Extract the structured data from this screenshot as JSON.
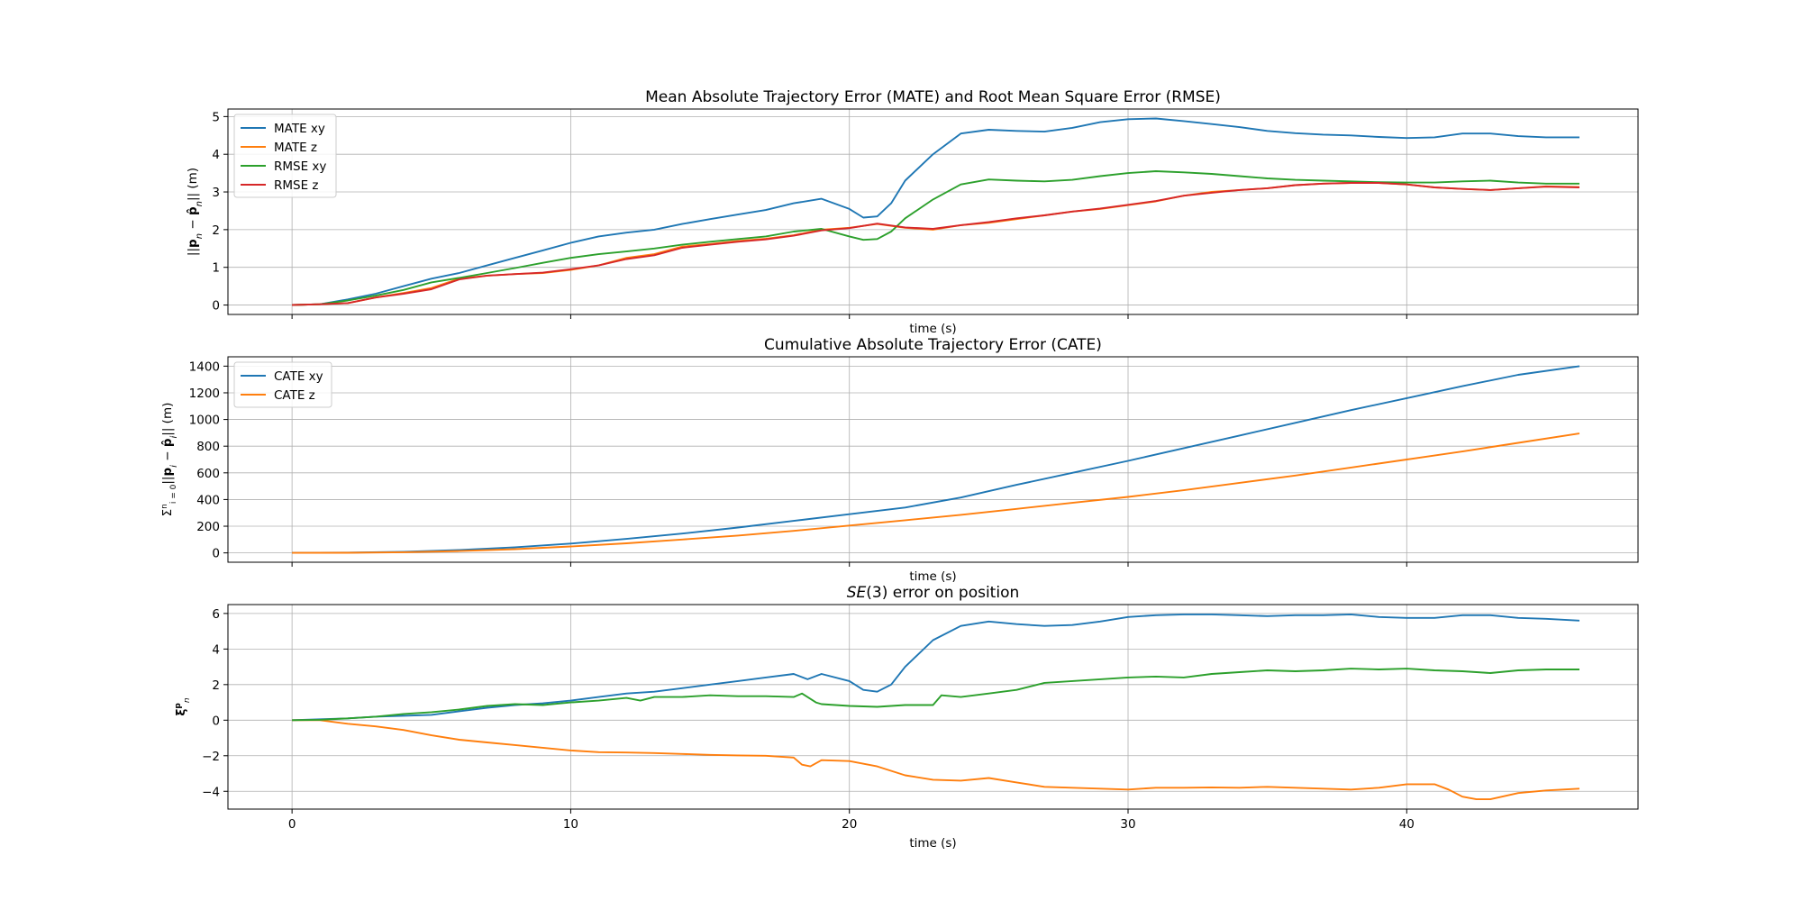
{
  "figure": {
    "background": "#ffffff",
    "grid": true,
    "colors": {
      "blue": "#1f77b4",
      "orange": "#ff7f0e",
      "green": "#2ca02c",
      "red": "#d62728"
    }
  },
  "chart_data": [
    {
      "type": "line",
      "title": "Mean Absolute Trajectory Error (MATE) and Root Mean Square Error (RMSE)",
      "xlabel": "time (s)",
      "ylabel": "||p_n − p̂_n|| (m)",
      "xlim": [
        -2.3,
        48.3
      ],
      "ylim": [
        -0.25,
        5.2
      ],
      "xticks": [
        0,
        10,
        20,
        30,
        40
      ],
      "yticks": [
        0,
        1,
        2,
        3,
        4,
        5
      ],
      "show_xtick_labels": false,
      "legend": "top-left",
      "series": [
        {
          "name": "MATE xy",
          "color": "#1f77b4",
          "x": [
            0,
            1,
            2,
            3,
            4,
            5,
            6,
            7,
            8,
            9,
            10,
            11,
            12,
            13,
            14,
            15,
            16,
            17,
            18,
            19,
            20,
            20.5,
            21,
            21.5,
            22,
            23,
            24,
            25,
            26,
            27,
            28,
            29,
            30,
            31,
            32,
            33,
            34,
            35,
            36,
            37,
            38,
            39,
            40,
            41,
            42,
            43,
            44,
            45,
            46.2
          ],
          "y": [
            0,
            0.02,
            0.15,
            0.3,
            0.5,
            0.7,
            0.85,
            1.05,
            1.25,
            1.45,
            1.65,
            1.82,
            1.92,
            2.0,
            2.15,
            2.28,
            2.4,
            2.52,
            2.7,
            2.82,
            2.55,
            2.32,
            2.35,
            2.7,
            3.3,
            4.0,
            4.55,
            4.65,
            4.62,
            4.6,
            4.7,
            4.85,
            4.93,
            4.95,
            4.88,
            4.8,
            4.72,
            4.62,
            4.56,
            4.52,
            4.5,
            4.46,
            4.43,
            4.45,
            4.55,
            4.55,
            4.48,
            4.45,
            4.45
          ]
        },
        {
          "name": "MATE z",
          "color": "#ff7f0e",
          "x": [
            0,
            1,
            2,
            3,
            4,
            5,
            6,
            7,
            8,
            9,
            10,
            11,
            12,
            13,
            14,
            15,
            16,
            17,
            18,
            19,
            20,
            21,
            22,
            23,
            24,
            25,
            26,
            27,
            28,
            29,
            30,
            31,
            32,
            33,
            34,
            35,
            36,
            37,
            38,
            39,
            40,
            41,
            42,
            43,
            44,
            45,
            46.2
          ],
          "y": [
            0,
            0.02,
            0.05,
            0.2,
            0.32,
            0.45,
            0.7,
            0.78,
            0.82,
            0.85,
            0.93,
            1.05,
            1.25,
            1.35,
            1.55,
            1.62,
            1.7,
            1.76,
            1.85,
            2.0,
            2.05,
            2.15,
            2.05,
            2.0,
            2.12,
            2.18,
            2.28,
            2.38,
            2.48,
            2.55,
            2.65,
            2.75,
            2.9,
            3.0,
            3.05,
            3.1,
            3.18,
            3.22,
            3.24,
            3.24,
            3.2,
            3.12,
            3.08,
            3.05,
            3.1,
            3.15,
            3.13
          ]
        },
        {
          "name": "RMSE xy",
          "color": "#2ca02c",
          "x": [
            0,
            1,
            2,
            3,
            4,
            5,
            6,
            7,
            8,
            9,
            10,
            11,
            12,
            13,
            14,
            15,
            16,
            17,
            18,
            19,
            20,
            20.5,
            21,
            21.5,
            22,
            23,
            24,
            25,
            26,
            27,
            28,
            29,
            30,
            31,
            32,
            33,
            34,
            35,
            36,
            37,
            38,
            39,
            40,
            41,
            42,
            43,
            44,
            45,
            46.2
          ],
          "y": [
            0,
            0.02,
            0.12,
            0.25,
            0.4,
            0.6,
            0.72,
            0.85,
            0.98,
            1.12,
            1.25,
            1.35,
            1.42,
            1.5,
            1.6,
            1.68,
            1.75,
            1.82,
            1.95,
            2.02,
            1.82,
            1.73,
            1.75,
            1.95,
            2.3,
            2.8,
            3.2,
            3.33,
            3.3,
            3.28,
            3.32,
            3.42,
            3.5,
            3.55,
            3.52,
            3.48,
            3.42,
            3.36,
            3.32,
            3.3,
            3.28,
            3.26,
            3.25,
            3.25,
            3.28,
            3.3,
            3.25,
            3.22,
            3.22
          ]
        },
        {
          "name": "RMSE z",
          "color": "#d62728",
          "x": [
            0,
            1,
            2,
            3,
            4,
            5,
            6,
            7,
            8,
            9,
            10,
            11,
            12,
            13,
            14,
            15,
            16,
            17,
            18,
            19,
            20,
            21,
            22,
            23,
            24,
            25,
            26,
            27,
            28,
            29,
            30,
            31,
            32,
            33,
            34,
            35,
            36,
            37,
            38,
            39,
            40,
            41,
            42,
            43,
            44,
            45,
            46.2
          ],
          "y": [
            0,
            0.02,
            0.05,
            0.2,
            0.3,
            0.42,
            0.68,
            0.78,
            0.82,
            0.86,
            0.95,
            1.05,
            1.22,
            1.32,
            1.52,
            1.6,
            1.68,
            1.74,
            1.84,
            1.98,
            2.04,
            2.16,
            2.06,
            2.02,
            2.12,
            2.2,
            2.3,
            2.38,
            2.48,
            2.56,
            2.66,
            2.76,
            2.9,
            2.98,
            3.05,
            3.1,
            3.18,
            3.22,
            3.24,
            3.24,
            3.2,
            3.12,
            3.08,
            3.05,
            3.1,
            3.14,
            3.12
          ]
        }
      ]
    },
    {
      "type": "line",
      "title": "Cumulative Absolute Trajectory Error (CATE)",
      "xlabel": "time (s)",
      "ylabel": "Σ_{i=0}^{n} ||p_i − p̂_i|| (m)",
      "xlim": [
        -2.3,
        48.3
      ],
      "ylim": [
        -70,
        1470
      ],
      "xticks": [
        0,
        10,
        20,
        30,
        40
      ],
      "yticks": [
        0,
        200,
        400,
        600,
        800,
        1000,
        1200,
        1400
      ],
      "show_xtick_labels": false,
      "legend": "top-left",
      "series": [
        {
          "name": "CATE xy",
          "color": "#1f77b4",
          "x": [
            0,
            2,
            4,
            6,
            8,
            10,
            12,
            14,
            16,
            18,
            20,
            22,
            24,
            26,
            28,
            30,
            32,
            34,
            36,
            38,
            40,
            42,
            44,
            46.2
          ],
          "y": [
            0,
            2,
            8,
            22,
            42,
            70,
            105,
            145,
            190,
            240,
            290,
            340,
            415,
            510,
            600,
            690,
            785,
            880,
            975,
            1070,
            1160,
            1250,
            1335,
            1400
          ]
        },
        {
          "name": "CATE z",
          "color": "#ff7f0e",
          "x": [
            0,
            2,
            4,
            6,
            8,
            10,
            12,
            14,
            16,
            18,
            20,
            22,
            24,
            26,
            28,
            30,
            32,
            34,
            36,
            38,
            40,
            42,
            44,
            46.2
          ],
          "y": [
            0,
            1,
            5,
            14,
            28,
            48,
            72,
            100,
            130,
            165,
            205,
            245,
            285,
            330,
            375,
            420,
            470,
            525,
            580,
            640,
            700,
            760,
            825,
            895
          ]
        }
      ]
    },
    {
      "type": "line",
      "title": "SE(3) error on position",
      "xlabel": "time (s)",
      "ylabel": "ξ_n^p",
      "xlim": [
        -2.3,
        48.3
      ],
      "ylim": [
        -5.0,
        6.5
      ],
      "xticks": [
        0,
        10,
        20,
        30,
        40
      ],
      "yticks": [
        -4,
        -2,
        0,
        2,
        4,
        6
      ],
      "show_xtick_labels": true,
      "series": [
        {
          "color": "#1f77b4",
          "x": [
            0,
            1,
            2,
            3,
            4,
            5,
            6,
            7,
            8,
            9,
            10,
            11,
            12,
            13,
            14,
            15,
            16,
            17,
            18,
            18.5,
            19,
            20,
            20.5,
            21,
            21.5,
            22,
            23,
            24,
            25,
            26,
            27,
            28,
            29,
            30,
            31,
            32,
            33,
            34,
            35,
            36,
            37,
            38,
            39,
            40,
            41,
            42,
            43,
            44,
            45,
            46.2
          ],
          "y": [
            0,
            0.05,
            0.1,
            0.2,
            0.25,
            0.3,
            0.5,
            0.7,
            0.85,
            0.95,
            1.1,
            1.3,
            1.5,
            1.6,
            1.8,
            2.0,
            2.2,
            2.4,
            2.6,
            2.3,
            2.6,
            2.2,
            1.7,
            1.6,
            2.0,
            3.0,
            4.5,
            5.3,
            5.55,
            5.4,
            5.3,
            5.35,
            5.55,
            5.8,
            5.9,
            5.95,
            5.95,
            5.9,
            5.85,
            5.9,
            5.9,
            5.95,
            5.8,
            5.75,
            5.75,
            5.9,
            5.9,
            5.75,
            5.7,
            5.6
          ]
        },
        {
          "color": "#ff7f0e",
          "x": [
            0,
            1,
            2,
            3,
            4,
            5,
            6,
            7,
            8,
            9,
            10,
            11,
            12,
            13,
            14,
            15,
            16,
            17,
            18,
            18.3,
            18.6,
            19,
            20,
            21,
            22,
            23,
            24,
            25,
            26,
            27,
            28,
            29,
            30,
            31,
            32,
            33,
            34,
            35,
            36,
            37,
            38,
            39,
            40,
            41,
            41.5,
            42,
            42.5,
            43,
            44,
            45,
            46.2
          ],
          "y": [
            0,
            0,
            -0.2,
            -0.35,
            -0.55,
            -0.85,
            -1.1,
            -1.25,
            -1.4,
            -1.55,
            -1.7,
            -1.8,
            -1.82,
            -1.85,
            -1.9,
            -1.95,
            -1.98,
            -2.0,
            -2.1,
            -2.5,
            -2.6,
            -2.25,
            -2.3,
            -2.6,
            -3.1,
            -3.35,
            -3.4,
            -3.25,
            -3.5,
            -3.75,
            -3.8,
            -3.85,
            -3.9,
            -3.8,
            -3.8,
            -3.78,
            -3.8,
            -3.75,
            -3.8,
            -3.85,
            -3.9,
            -3.8,
            -3.6,
            -3.6,
            -3.9,
            -4.3,
            -4.45,
            -4.45,
            -4.1,
            -3.95,
            -3.85
          ]
        },
        {
          "color": "#2ca02c",
          "x": [
            0,
            1,
            2,
            3,
            4,
            5,
            6,
            7,
            8,
            9,
            10,
            11,
            12,
            12.5,
            13,
            14,
            15,
            16,
            17,
            18,
            18.3,
            18.8,
            19,
            20,
            21,
            22,
            23,
            23.3,
            24,
            25,
            26,
            27,
            28,
            29,
            30,
            31,
            32,
            33,
            34,
            35,
            36,
            37,
            38,
            39,
            40,
            41,
            42,
            43,
            44,
            45,
            46.2
          ],
          "y": [
            0,
            0.02,
            0.1,
            0.2,
            0.35,
            0.45,
            0.6,
            0.8,
            0.9,
            0.85,
            1.0,
            1.1,
            1.25,
            1.1,
            1.3,
            1.3,
            1.4,
            1.35,
            1.35,
            1.3,
            1.5,
            1.0,
            0.9,
            0.8,
            0.75,
            0.85,
            0.85,
            1.4,
            1.3,
            1.5,
            1.7,
            2.1,
            2.2,
            2.3,
            2.4,
            2.45,
            2.4,
            2.6,
            2.7,
            2.8,
            2.75,
            2.8,
            2.9,
            2.85,
            2.9,
            2.8,
            2.75,
            2.65,
            2.8,
            2.85,
            2.85
          ]
        }
      ]
    }
  ]
}
